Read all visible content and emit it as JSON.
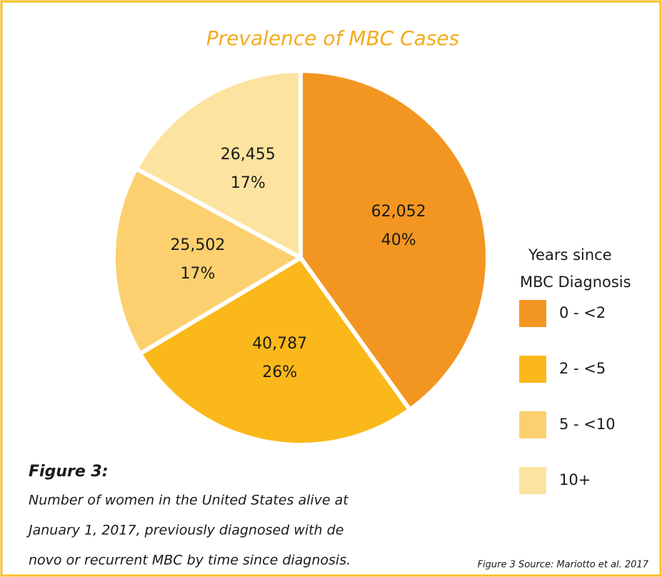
{
  "chart_data": {
    "type": "pie",
    "title": "Prevalence of MBC Cases",
    "categories": [
      "0 - <2",
      "2 - <5",
      "5 - <10",
      "10+"
    ],
    "values": [
      62052,
      40787,
      25502,
      26455
    ],
    "value_labels": [
      "62,052",
      "40,787",
      "25,502",
      "26,455"
    ],
    "percents": [
      40,
      26,
      17,
      17
    ],
    "percent_labels": [
      "40%",
      "26%",
      "17%",
      "17%"
    ],
    "colors": [
      "#f39621",
      "#fbb81b",
      "#fcd06f",
      "#fde3a0"
    ],
    "legend_title": [
      "Years since",
      "MBC Diagnosis"
    ],
    "legend_position": "right",
    "caption_heading": "Figure 3:",
    "caption": [
      "Number of women in the United States alive at",
      "January 1, 2017, previously diagnosed with de",
      "novo or recurrent MBC by time since diagnosis."
    ],
    "source": "Figure 3 Source: Mariotto et al. 2017"
  }
}
